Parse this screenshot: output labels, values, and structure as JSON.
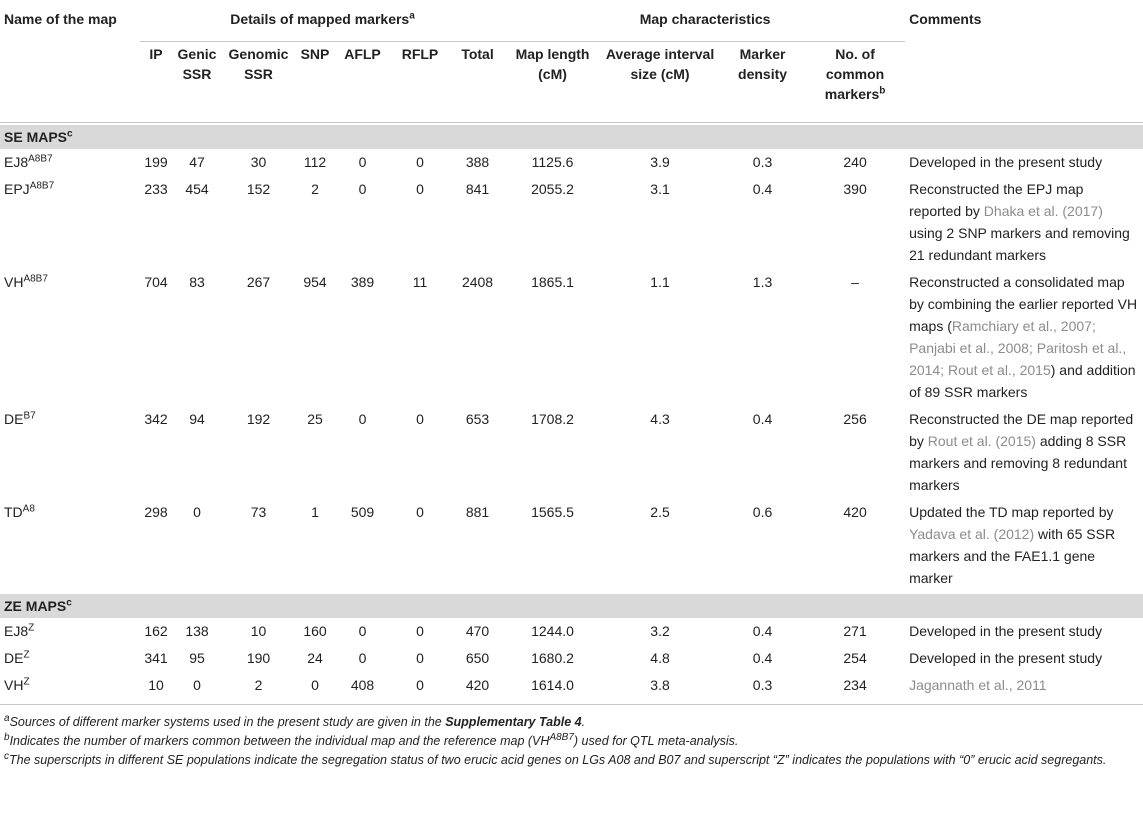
{
  "table": {
    "header": {
      "name": "Name of the map",
      "markers": "Details of mapped markers",
      "markers_note": "a",
      "characteristics": "Map characteristics",
      "comments": "Comments"
    },
    "columns": [
      {
        "label": "IP"
      },
      {
        "label": "Genic SSR"
      },
      {
        "label": "Genomic SSR"
      },
      {
        "label": "SNP"
      },
      {
        "label": "AFLP"
      },
      {
        "label": "RFLP"
      },
      {
        "label": "Total"
      },
      {
        "label": "Map length (cM)"
      },
      {
        "label": "Average interval size (cM)"
      },
      {
        "label": "Marker density"
      },
      {
        "label": "No. of common markers",
        "note": "b"
      }
    ],
    "sections": [
      {
        "label": "SE MAPS",
        "note": "c",
        "rows": [
          {
            "name": "EJ8",
            "sup": "A8B7",
            "cells": [
              "199",
              "47",
              "30",
              "112",
              "0",
              "0",
              "388",
              "1125.6",
              "3.9",
              "0.3",
              "240"
            ],
            "comment": [
              {
                "text": "Developed in the present study"
              }
            ]
          },
          {
            "name": "EPJ",
            "sup": "A8B7",
            "cells": [
              "233",
              "454",
              "152",
              "2",
              "0",
              "0",
              "841",
              "2055.2",
              "3.1",
              "0.4",
              "390"
            ],
            "comment": [
              {
                "text": "Reconstructed the EPJ map reported by "
              },
              {
                "text": "Dhaka et al. (2017)",
                "cite": true
              },
              {
                "text": " using 2 SNP markers and removing 21 redundant markers"
              }
            ]
          },
          {
            "name": "VH",
            "sup": "A8B7",
            "cells": [
              "704",
              "83",
              "267",
              "954",
              "389",
              "11",
              "2408",
              "1865.1",
              "1.1",
              "1.3",
              "–"
            ],
            "comment": [
              {
                "text": "Reconstructed a consolidated map by combining the earlier reported VH maps ("
              },
              {
                "text": "Ramchiary et al., 2007; Panjabi et al., 2008; Paritosh et al., 2014; Rout et al., 2015",
                "cite": true
              },
              {
                "text": ") and addition of 89 SSR markers"
              }
            ]
          },
          {
            "name": "DE",
            "sup": "B7",
            "cells": [
              "342",
              "94",
              "192",
              "25",
              "0",
              "0",
              "653",
              "1708.2",
              "4.3",
              "0.4",
              "256"
            ],
            "comment": [
              {
                "text": "Reconstructed the DE map reported by "
              },
              {
                "text": "Rout et al. (2015)",
                "cite": true
              },
              {
                "text": " adding 8 SSR markers and removing 8 redundant markers"
              }
            ]
          },
          {
            "name": "TD",
            "sup": "A8",
            "cells": [
              "298",
              "0",
              "73",
              "1",
              "509",
              "0",
              "881",
              "1565.5",
              "2.5",
              "0.6",
              "420"
            ],
            "comment": [
              {
                "text": "Updated the TD map reported by "
              },
              {
                "text": "Yadava et al. (2012)",
                "cite": true
              },
              {
                "text": " with 65 SSR markers and the FAE1.1 gene marker"
              }
            ]
          }
        ]
      },
      {
        "label": "ZE MAPS",
        "note": "c",
        "rows": [
          {
            "name": "EJ8",
            "sup": "Z",
            "cells": [
              "162",
              "138",
              "10",
              "160",
              "0",
              "0",
              "470",
              "1244.0",
              "3.2",
              "0.4",
              "271"
            ],
            "comment": [
              {
                "text": "Developed in the present study"
              }
            ]
          },
          {
            "name": "DE",
            "sup": "Z",
            "cells": [
              "341",
              "95",
              "190",
              "24",
              "0",
              "0",
              "650",
              "1680.2",
              "4.8",
              "0.4",
              "254"
            ],
            "comment": [
              {
                "text": "Developed in the present study"
              }
            ]
          },
          {
            "name": "VH",
            "sup": "Z",
            "cells": [
              "10",
              "0",
              "2",
              "0",
              "408",
              "0",
              "420",
              "1614.0",
              "3.8",
              "0.3",
              "234"
            ],
            "comment": [
              {
                "text": "Jagannath et al., 2011",
                "cite": true
              }
            ]
          }
        ]
      }
    ]
  },
  "footnotes": [
    {
      "mark": "a",
      "parts": [
        {
          "text": "Sources of different marker systems used in the present study are given in the "
        },
        {
          "text": "Supplementary Table 4",
          "bold": true
        },
        {
          "text": "."
        }
      ]
    },
    {
      "mark": "b",
      "parts": [
        {
          "text": "Indicates the number of markers common between the individual map and the reference map (VH"
        },
        {
          "text": "A8B7",
          "sup": true
        },
        {
          "text": ") used for QTL meta-analysis."
        }
      ]
    },
    {
      "mark": "c",
      "parts": [
        {
          "text": "The superscripts in different SE populations indicate the segregation status of two erucic acid genes on LGs A08 and B07 and superscript “Z” indicates the populations with “0” erucic acid segregants."
        }
      ]
    }
  ]
}
